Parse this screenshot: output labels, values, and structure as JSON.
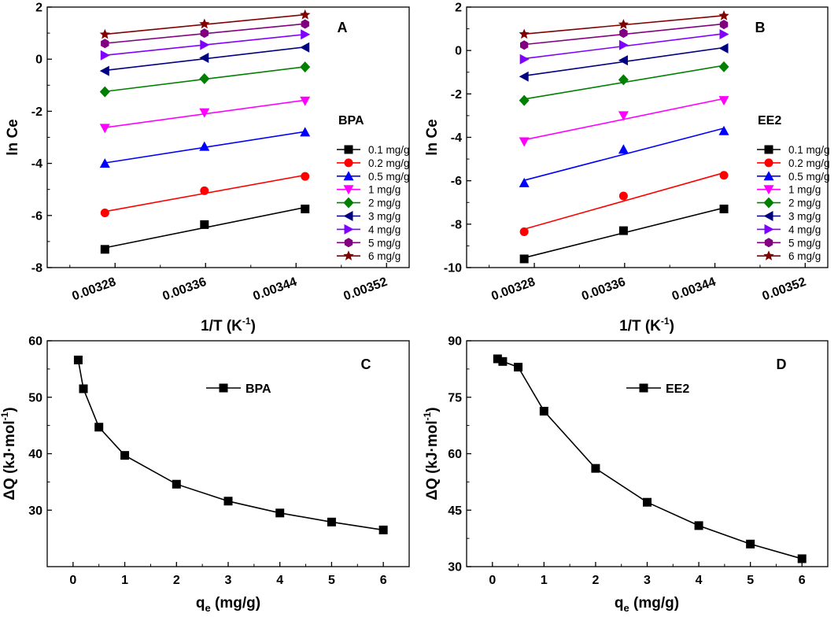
{
  "chart_data": [
    {
      "panel": "A",
      "type": "scatter",
      "compound": "BPA",
      "xlabel_main": "1/T (K",
      "xlabel_sup": "-1",
      "xlabel_end": ")",
      "ylabel": "ln Ce",
      "xlim": [
        0.00322,
        0.00354
      ],
      "ylim": [
        -8,
        2
      ],
      "xticks": [
        0.00328,
        0.00336,
        0.00344,
        0.00352
      ],
      "xtick_labels": [
        "0.00328",
        "0.00336",
        "0.00344",
        "0.00352"
      ],
      "yticks": [
        -8,
        -6,
        -4,
        -2,
        0,
        2
      ],
      "ytick_labels": [
        "-8",
        "-6",
        "-4",
        "-2",
        "0",
        "2"
      ],
      "x": [
        0.003271,
        0.003359,
        0.003448
      ],
      "series": [
        {
          "name": "0.1 mg/g",
          "color": "#000000",
          "marker": "square",
          "values": [
            -7.3,
            -6.35,
            -5.75
          ]
        },
        {
          "name": "0.2 mg/g",
          "color": "#ff0000",
          "marker": "circle",
          "values": [
            -5.9,
            -5.05,
            -4.5
          ]
        },
        {
          "name": "0.5 mg/g",
          "color": "#0000ff",
          "marker": "triangle-up",
          "values": [
            -4.0,
            -3.35,
            -2.8
          ]
        },
        {
          "name": "1 mg/g",
          "color": "#ff00ff",
          "marker": "triangle-down",
          "values": [
            -2.65,
            -2.05,
            -1.6
          ]
        },
        {
          "name": "2 mg/g",
          "color": "#008000",
          "marker": "diamond",
          "values": [
            -1.25,
            -0.75,
            -0.3
          ]
        },
        {
          "name": "3 mg/g",
          "color": "#000080",
          "marker": "triangle-left",
          "values": [
            -0.45,
            0.05,
            0.45
          ]
        },
        {
          "name": "4 mg/g",
          "color": "#8000ff",
          "marker": "triangle-right",
          "values": [
            0.15,
            0.55,
            0.95
          ]
        },
        {
          "name": "5 mg/g",
          "color": "#800080",
          "marker": "hexagon",
          "values": [
            0.6,
            1.0,
            1.35
          ]
        },
        {
          "name": "6 mg/g",
          "color": "#800000",
          "marker": "star",
          "values": [
            0.95,
            1.35,
            1.7
          ]
        }
      ]
    },
    {
      "panel": "B",
      "type": "scatter",
      "compound": "EE2",
      "xlabel_main": "1/T (K",
      "xlabel_sup": "-1",
      "xlabel_end": ")",
      "ylabel": "ln Ce",
      "xlim": [
        0.00322,
        0.00354
      ],
      "ylim": [
        -10,
        2
      ],
      "xticks": [
        0.00328,
        0.00336,
        0.00344,
        0.00352
      ],
      "xtick_labels": [
        "0.00328",
        "0.00336",
        "0.00344",
        "0.00352"
      ],
      "yticks": [
        -10,
        -8,
        -6,
        -4,
        -2,
        0,
        2
      ],
      "ytick_labels": [
        "-10",
        "-8",
        "-6",
        "-4",
        "-2",
        "0",
        "2"
      ],
      "x": [
        0.003271,
        0.003359,
        0.003448
      ],
      "series": [
        {
          "name": "0.1 mg/g",
          "color": "#000000",
          "marker": "square",
          "values": [
            -9.6,
            -8.3,
            -7.3
          ]
        },
        {
          "name": "0.2 mg/g",
          "color": "#ff0000",
          "marker": "circle",
          "values": [
            -8.35,
            -6.7,
            -5.75
          ]
        },
        {
          "name": "0.5 mg/g",
          "color": "#0000ff",
          "marker": "triangle-up",
          "values": [
            -6.1,
            -4.55,
            -3.7
          ]
        },
        {
          "name": "1 mg/g",
          "color": "#ff00ff",
          "marker": "triangle-down",
          "values": [
            -4.2,
            -3.0,
            -2.3
          ]
        },
        {
          "name": "2 mg/g",
          "color": "#008000",
          "marker": "diamond",
          "values": [
            -2.3,
            -1.35,
            -0.75
          ]
        },
        {
          "name": "3 mg/g",
          "color": "#000080",
          "marker": "triangle-left",
          "values": [
            -1.2,
            -0.45,
            0.1
          ]
        },
        {
          "name": "4 mg/g",
          "color": "#8000ff",
          "marker": "triangle-right",
          "values": [
            -0.4,
            0.25,
            0.75
          ]
        },
        {
          "name": "5 mg/g",
          "color": "#800080",
          "marker": "hexagon",
          "values": [
            0.25,
            0.8,
            1.2
          ]
        },
        {
          "name": "6 mg/g",
          "color": "#800000",
          "marker": "star",
          "values": [
            0.75,
            1.2,
            1.6
          ]
        }
      ]
    },
    {
      "panel": "C",
      "type": "line",
      "compound": "BPA",
      "xlabel_main": "q",
      "xlabel_sub": "e",
      "xlabel_end": " (mg/g)",
      "ylabel_main": "ΔQ (kJ·mol",
      "ylabel_sup": "-1",
      "ylabel_end": ")",
      "xlim": [
        -0.5,
        6.5
      ],
      "ylim": [
        20,
        60
      ],
      "xticks": [
        0,
        1,
        2,
        3,
        4,
        5,
        6
      ],
      "xtick_labels": [
        "0",
        "1",
        "2",
        "3",
        "4",
        "5",
        "6"
      ],
      "yticks": [
        30,
        40,
        50,
        60
      ],
      "ytick_labels": [
        "30",
        "40",
        "50",
        "60"
      ],
      "x": [
        0.1,
        0.2,
        0.5,
        1,
        2,
        3,
        4,
        5,
        6
      ],
      "series": [
        {
          "name": "BPA",
          "color": "#000000",
          "marker": "square",
          "values": [
            56.6,
            51.5,
            44.7,
            39.7,
            34.6,
            31.6,
            29.5,
            27.9,
            26.5
          ]
        }
      ]
    },
    {
      "panel": "D",
      "type": "line",
      "compound": "EE2",
      "xlabel_main": "q",
      "xlabel_sub": "e",
      "xlabel_end": " (mg/g)",
      "ylabel_main": "ΔQ (kJ·mol",
      "ylabel_sup": "-1",
      "ylabel_end": ")",
      "xlim": [
        -0.5,
        6.5
      ],
      "ylim": [
        30,
        90
      ],
      "xticks": [
        0,
        1,
        2,
        3,
        4,
        5,
        6
      ],
      "xtick_labels": [
        "0",
        "1",
        "2",
        "3",
        "4",
        "5",
        "6"
      ],
      "yticks": [
        30,
        45,
        60,
        75,
        90
      ],
      "ytick_labels": [
        "30",
        "45",
        "60",
        "75",
        "90"
      ],
      "x": [
        0.1,
        0.2,
        0.5,
        1,
        2,
        3,
        4,
        5,
        6
      ],
      "series": [
        {
          "name": "EE2",
          "color": "#000000",
          "marker": "square",
          "values": [
            85.2,
            84.5,
            83.0,
            71.3,
            56.1,
            47.1,
            40.9,
            36.0,
            32.1
          ]
        }
      ]
    }
  ]
}
